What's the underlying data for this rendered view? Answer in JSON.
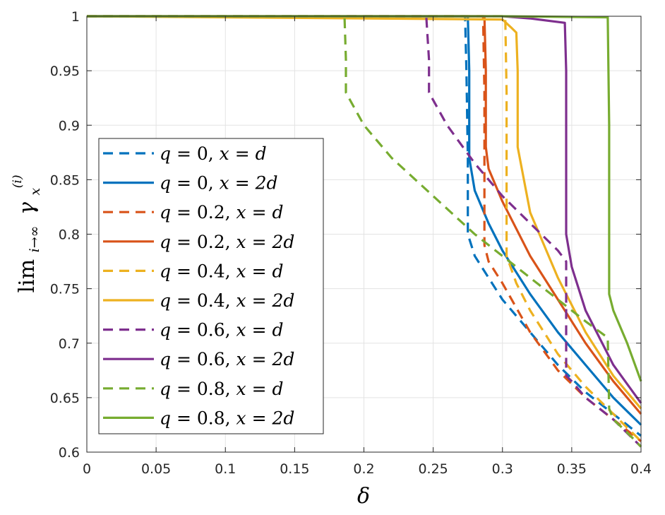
{
  "chart_data": {
    "type": "line",
    "title": "",
    "xlabel": "δ",
    "ylabel": "lim i→∞ γx(i)",
    "ylabel_parts": {
      "lim": "lim",
      "sub": "i→∞",
      "gamma": "γ",
      "gamma_sub": "x",
      "gamma_sup": "(i)"
    },
    "xlim": [
      0,
      0.4
    ],
    "ylim": [
      0.6,
      1
    ],
    "xticks": [
      0,
      0.05,
      0.1,
      0.15,
      0.2,
      0.25,
      0.3,
      0.35,
      0.4
    ],
    "yticks": [
      0.6,
      0.65,
      0.7,
      0.75,
      0.8,
      0.85,
      0.9,
      0.95,
      1
    ],
    "xtick_labels": [
      "0",
      "0.05",
      "0.1",
      "0.15",
      "0.2",
      "0.25",
      "0.3",
      "0.35",
      "0.4"
    ],
    "ytick_labels": [
      "0.6",
      "0.65",
      "0.7",
      "0.75",
      "0.8",
      "0.85",
      "0.9",
      "0.95",
      "1"
    ],
    "grid": true,
    "legend_position": "left-center",
    "series": [
      {
        "name": "q = 0, x = d",
        "color": "#0072BD",
        "style": "dashed",
        "x": [
          0,
          0.273,
          0.274,
          0.275,
          0.275,
          0.28,
          0.29,
          0.3,
          0.32,
          0.34,
          0.36,
          0.38,
          0.4
        ],
        "y": [
          1,
          1,
          0.95,
          0.87,
          0.8,
          0.78,
          0.76,
          0.74,
          0.71,
          0.68,
          0.655,
          0.635,
          0.615
        ]
      },
      {
        "name": "q = 0, x = 2d",
        "color": "#0072BD",
        "style": "solid",
        "x": [
          0,
          0.275,
          0.276,
          0.276,
          0.28,
          0.29,
          0.3,
          0.32,
          0.34,
          0.36,
          0.38,
          0.4
        ],
        "y": [
          1,
          1,
          0.95,
          0.87,
          0.84,
          0.81,
          0.785,
          0.745,
          0.71,
          0.68,
          0.65,
          0.625
        ]
      },
      {
        "name": "q = 0.2, x = d",
        "color": "#D95319",
        "style": "dashed",
        "x": [
          0,
          0.286,
          0.287,
          0.287,
          0.29,
          0.3,
          0.32,
          0.34,
          0.36,
          0.38,
          0.4
        ],
        "y": [
          1,
          1,
          0.93,
          0.79,
          0.775,
          0.755,
          0.71,
          0.675,
          0.65,
          0.63,
          0.61
        ]
      },
      {
        "name": "q = 0.2, x = 2d",
        "color": "#D95319",
        "style": "solid",
        "x": [
          0,
          0.287,
          0.288,
          0.288,
          0.29,
          0.3,
          0.32,
          0.34,
          0.36,
          0.38,
          0.4
        ],
        "y": [
          1,
          1,
          0.95,
          0.88,
          0.86,
          0.83,
          0.78,
          0.74,
          0.7,
          0.665,
          0.635
        ]
      },
      {
        "name": "q = 0.4, x = d",
        "color": "#EDB120",
        "style": "dashed",
        "x": [
          0,
          0.302,
          0.303,
          0.303,
          0.31,
          0.32,
          0.34,
          0.36,
          0.38,
          0.4
        ],
        "y": [
          1,
          1,
          0.93,
          0.78,
          0.755,
          0.73,
          0.69,
          0.66,
          0.635,
          0.61
        ]
      },
      {
        "name": "q = 0.4, x = 2d",
        "color": "#EDB120",
        "style": "solid",
        "x": [
          0,
          0.3,
          0.306,
          0.31,
          0.311,
          0.311,
          0.32,
          0.34,
          0.36,
          0.38,
          0.4
        ],
        "y": [
          1,
          0.997,
          0.99,
          0.985,
          0.95,
          0.88,
          0.82,
          0.76,
          0.71,
          0.67,
          0.64
        ]
      },
      {
        "name": "q = 0.6, x = d",
        "color": "#7E2F8E",
        "style": "dashed",
        "x": [
          0,
          0.245,
          0.247,
          0.247,
          0.26,
          0.28,
          0.3,
          0.32,
          0.34,
          0.346,
          0.346,
          0.35,
          0.36,
          0.38,
          0.4
        ],
        "y": [
          1,
          1,
          0.96,
          0.93,
          0.9,
          0.865,
          0.835,
          0.81,
          0.785,
          0.775,
          0.67,
          0.665,
          0.65,
          0.63,
          0.605
        ]
      },
      {
        "name": "q = 0.6, x = 2d",
        "color": "#7E2F8E",
        "style": "solid",
        "x": [
          0,
          0.3,
          0.32,
          0.345,
          0.346,
          0.346,
          0.35,
          0.36,
          0.38,
          0.4
        ],
        "y": [
          1,
          1,
          0.998,
          0.994,
          0.95,
          0.8,
          0.77,
          0.73,
          0.68,
          0.645
        ]
      },
      {
        "name": "q = 0.8, x = d",
        "color": "#77AC30",
        "style": "dashed",
        "x": [
          0,
          0.186,
          0.187,
          0.187,
          0.2,
          0.22,
          0.25,
          0.28,
          0.3,
          0.32,
          0.34,
          0.36,
          0.376,
          0.377,
          0.38,
          0.39,
          0.4
        ],
        "y": [
          1,
          1,
          0.96,
          0.93,
          0.9,
          0.87,
          0.835,
          0.8,
          0.78,
          0.76,
          0.74,
          0.72,
          0.705,
          0.64,
          0.63,
          0.618,
          0.605
        ]
      },
      {
        "name": "q = 0.8, x = 2d",
        "color": "#77AC30",
        "style": "solid",
        "x": [
          0,
          0.3,
          0.376,
          0.377,
          0.377,
          0.38,
          0.39,
          0.4
        ],
        "y": [
          1,
          1,
          0.999,
          0.9,
          0.745,
          0.73,
          0.7,
          0.665
        ]
      }
    ],
    "legend_items": [
      {
        "q": "0",
        "x": "d"
      },
      {
        "q": "0",
        "x": "2d"
      },
      {
        "q": "0.2",
        "x": "d"
      },
      {
        "q": "0.2",
        "x": "2d"
      },
      {
        "q": "0.4",
        "x": "d"
      },
      {
        "q": "0.4",
        "x": "2d"
      },
      {
        "q": "0.6",
        "x": "d"
      },
      {
        "q": "0.6",
        "x": "2d"
      },
      {
        "q": "0.8",
        "x": "d"
      },
      {
        "q": "0.8",
        "x": "2d"
      }
    ]
  }
}
